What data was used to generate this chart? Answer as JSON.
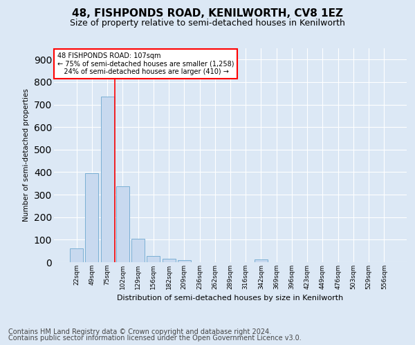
{
  "title": "48, FISHPONDS ROAD, KENILWORTH, CV8 1EZ",
  "subtitle": "Size of property relative to semi-detached houses in Kenilworth",
  "xlabel": "Distribution of semi-detached houses by size in Kenilworth",
  "ylabel": "Number of semi-detached properties",
  "categories": [
    "22sqm",
    "49sqm",
    "75sqm",
    "102sqm",
    "129sqm",
    "156sqm",
    "182sqm",
    "209sqm",
    "236sqm",
    "262sqm",
    "289sqm",
    "316sqm",
    "342sqm",
    "369sqm",
    "396sqm",
    "423sqm",
    "449sqm",
    "476sqm",
    "503sqm",
    "529sqm",
    "556sqm"
  ],
  "values": [
    62,
    394,
    735,
    338,
    104,
    27,
    15,
    9,
    0,
    0,
    0,
    0,
    12,
    0,
    0,
    0,
    0,
    0,
    0,
    0,
    0
  ],
  "bar_color": "#c8d9ef",
  "bar_edge_color": "#7aafd4",
  "property_line_color": "red",
  "annotation_line1": "48 FISHPONDS ROAD: 107sqm",
  "annotation_line2": "← 75% of semi-detached houses are smaller (1,258)",
  "annotation_line3": "24% of semi-detached houses are larger (410) →",
  "annotation_box_color": "white",
  "annotation_box_edge_color": "red",
  "ylim": [
    0,
    950
  ],
  "yticks": [
    0,
    100,
    200,
    300,
    400,
    500,
    600,
    700,
    800,
    900
  ],
  "footer_line1": "Contains HM Land Registry data © Crown copyright and database right 2024.",
  "footer_line2": "Contains public sector information licensed under the Open Government Licence v3.0.",
  "background_color": "#dce8f5",
  "plot_background_color": "#dce8f5",
  "grid_color": "white",
  "title_fontsize": 11,
  "subtitle_fontsize": 9,
  "footer_fontsize": 7
}
